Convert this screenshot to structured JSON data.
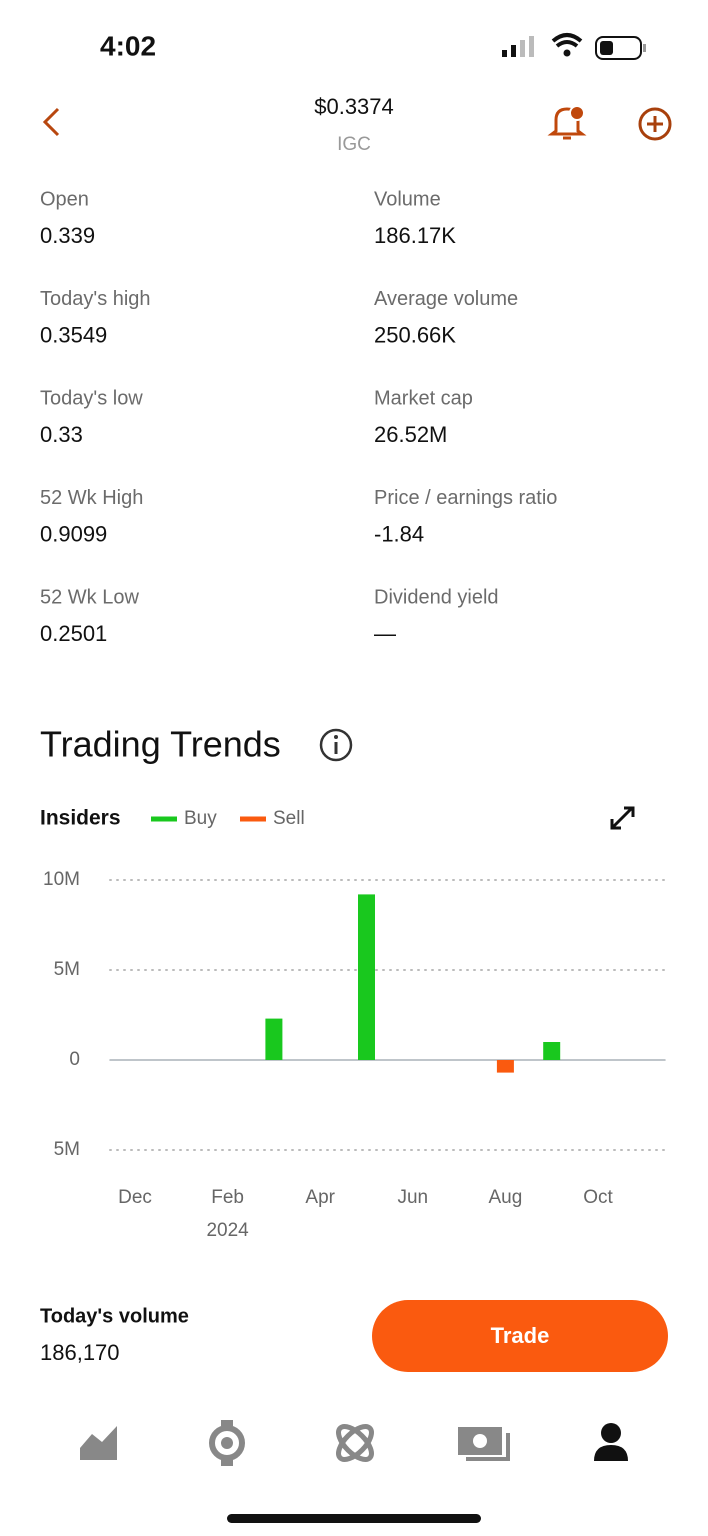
{
  "status_bar": {
    "time": "4:02"
  },
  "header": {
    "price": "$0.3374",
    "ticker": "IGC"
  },
  "stats": [
    {
      "label": "Open",
      "value": "0.339"
    },
    {
      "label": "Volume",
      "value": "186.17K"
    },
    {
      "label": "Today's high",
      "value": "0.3549"
    },
    {
      "label": "Average volume",
      "value": "250.66K"
    },
    {
      "label": "Today's low",
      "value": "0.33"
    },
    {
      "label": "Market cap",
      "value": "26.52M"
    },
    {
      "label": "52 Wk High",
      "value": "0.9099"
    },
    {
      "label": "Price / earnings ratio",
      "value": "-1.84"
    },
    {
      "label": "52 Wk Low",
      "value": "0.2501"
    },
    {
      "label": "Dividend yield",
      "value": "—"
    }
  ],
  "trends": {
    "title": "Trading Trends"
  },
  "chart_data": {
    "type": "bar",
    "legend_title": "Insiders",
    "categories": [
      "Dec",
      null,
      "Feb",
      null,
      "Apr",
      null,
      "Jun",
      null,
      "Aug",
      null,
      "Oct",
      null
    ],
    "year_label": "2024",
    "series": [
      {
        "name": "Buy",
        "color": "#19c81e",
        "values": [
          0,
          0,
          0,
          2300000,
          0,
          9200000,
          0,
          0,
          0,
          1000000,
          0,
          0
        ]
      },
      {
        "name": "Sell",
        "color": "#fa5a0f",
        "values": [
          0,
          0,
          0,
          0,
          0,
          0,
          0,
          0,
          -700000,
          0,
          0,
          0
        ]
      }
    ],
    "ylim": [
      -5000000,
      10000000
    ],
    "yticks": [
      {
        "value": -5000000,
        "label": "5M"
      },
      0,
      {
        "value": 5000000,
        "label": "5M"
      },
      {
        "value": 10000000,
        "label": "10M"
      }
    ],
    "grid": true
  },
  "footer": {
    "volume_label": "Today's volume",
    "volume_value": "186,170",
    "trade_button": "Trade"
  }
}
